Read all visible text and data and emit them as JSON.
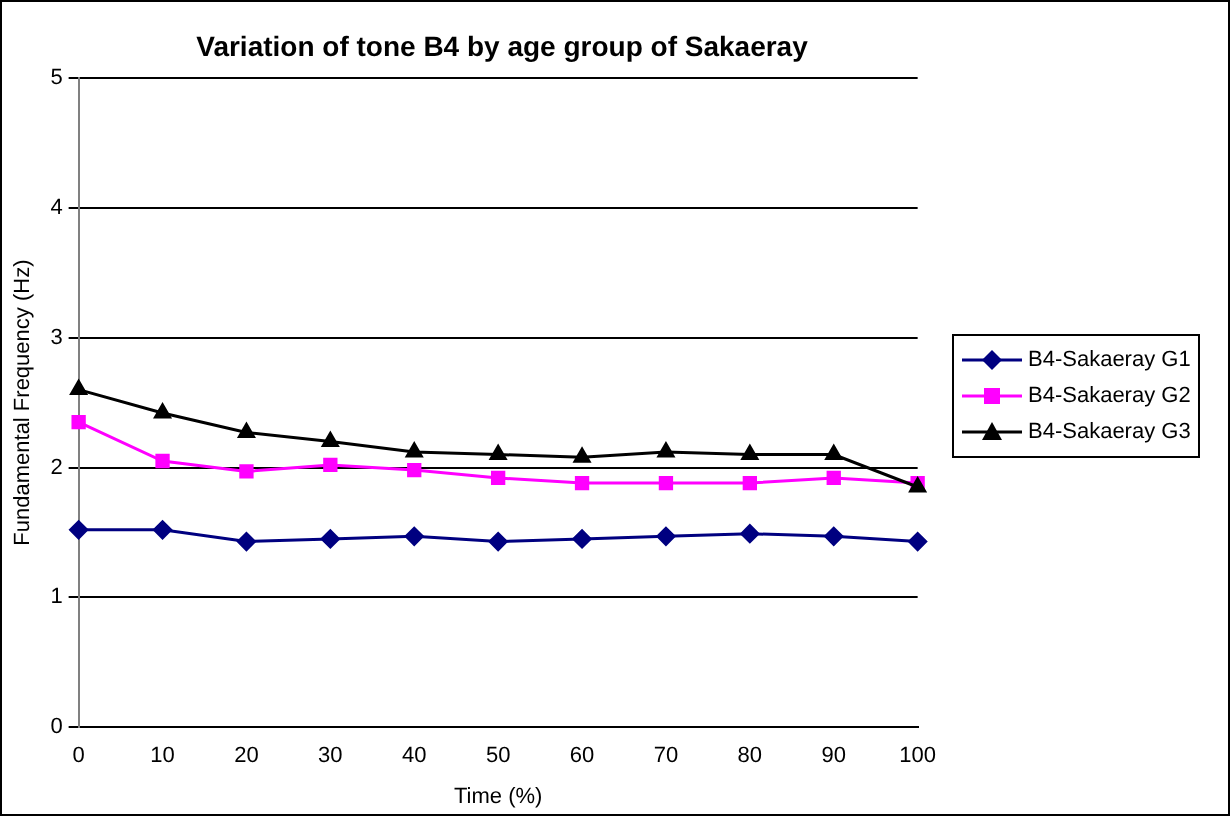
{
  "chart_data": {
    "type": "line",
    "title": "Variation of tone B4 by age group of Sakaeray",
    "xlabel": "Time (%)",
    "ylabel": "Fundamental Frequency (Hz)",
    "categories": [
      "0",
      "10",
      "20",
      "30",
      "40",
      "50",
      "60",
      "70",
      "80",
      "90",
      "100"
    ],
    "series": [
      {
        "name": "B4-Sakaeray G1",
        "color": "#000080",
        "marker": "diamond",
        "values": [
          1.52,
          1.52,
          1.43,
          1.45,
          1.47,
          1.43,
          1.45,
          1.47,
          1.49,
          1.47,
          1.43
        ]
      },
      {
        "name": "B4-Sakaeray G2",
        "color": "#ff00ff",
        "marker": "square",
        "values": [
          2.35,
          2.05,
          1.97,
          2.02,
          1.98,
          1.92,
          1.88,
          1.88,
          1.88,
          1.92,
          1.88
        ]
      },
      {
        "name": "B4-Sakaeray G3",
        "color": "#000000",
        "marker": "triangle",
        "values": [
          2.6,
          2.42,
          2.27,
          2.2,
          2.12,
          2.1,
          2.08,
          2.12,
          2.1,
          2.1,
          1.85
        ]
      }
    ],
    "ylim": [
      0,
      5
    ],
    "yticks": [
      0,
      1,
      2,
      3,
      4,
      5
    ],
    "grid": "y",
    "legend": "right"
  }
}
